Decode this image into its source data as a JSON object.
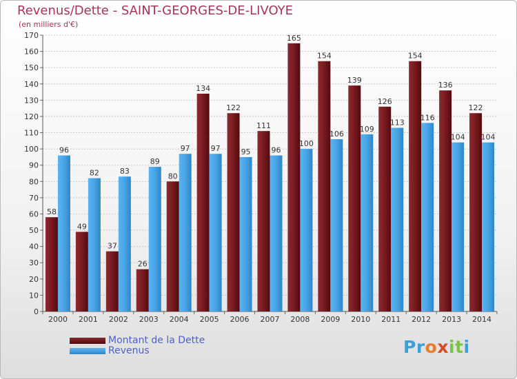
{
  "title": "Revenus/Dette - SAINT-GEORGES-DE-LIVOYE",
  "subtitle": "(en milliers d'€)",
  "logo": {
    "text": "Proxiti",
    "letters": [
      "P",
      "r",
      "o",
      "x",
      "i",
      "t",
      "i"
    ],
    "colors": [
      "#3aa0d8",
      "#3aa0d8",
      "#e87e2a",
      "#d94b1f",
      "#7cc24a",
      "#7cc24a",
      "#3aa0d8"
    ]
  },
  "chart_data": {
    "type": "bar",
    "categories": [
      "2000",
      "2001",
      "2002",
      "2003",
      "2004",
      "2005",
      "2006",
      "2007",
      "2008",
      "2009",
      "2010",
      "2011",
      "2012",
      "2013",
      "2014"
    ],
    "series": [
      {
        "name": "Montant de la Dette",
        "color": "#6e1318",
        "values": [
          58,
          49,
          37,
          26,
          80,
          134,
          122,
          111,
          165,
          154,
          139,
          126,
          154,
          136,
          122
        ]
      },
      {
        "name": "Revenus",
        "color": "#3f9ee0",
        "values": [
          96,
          82,
          83,
          89,
          97,
          97,
          95,
          96,
          100,
          106,
          109,
          113,
          116,
          104,
          104
        ]
      }
    ],
    "ylim": [
      0,
      170
    ],
    "yticks": [
      0,
      10,
      20,
      30,
      40,
      50,
      60,
      70,
      80,
      90,
      100,
      110,
      120,
      130,
      140,
      150,
      160,
      170
    ],
    "grid": true,
    "legend": "bottom-left"
  }
}
